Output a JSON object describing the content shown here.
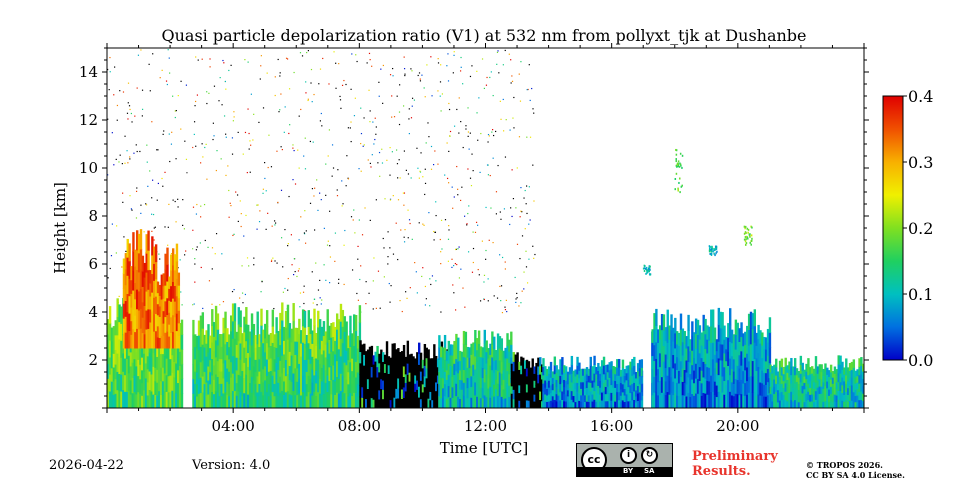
{
  "chart_data": {
    "type": "heatmap",
    "title": "Quasi particle depolarization ratio (V1) at 532 nm from pollyxt_tjk at Dushanbe",
    "xlabel": "Time [UTC]",
    "ylabel": "Height [km]",
    "x_range_hours": [
      0,
      24
    ],
    "ylim": [
      0,
      15
    ],
    "x_ticks": [
      {
        "hour": 4,
        "label": "04:00"
      },
      {
        "hour": 8,
        "label": "08:00"
      },
      {
        "hour": 12,
        "label": "12:00"
      },
      {
        "hour": 16,
        "label": "16:00"
      },
      {
        "hour": 20,
        "label": "20:00"
      }
    ],
    "y_ticks": [
      {
        "value": 2,
        "label": "2"
      },
      {
        "value": 4,
        "label": "4"
      },
      {
        "value": 6,
        "label": "6"
      },
      {
        "value": 8,
        "label": "8"
      },
      {
        "value": 10,
        "label": "10"
      },
      {
        "value": 12,
        "label": "12"
      },
      {
        "value": 14,
        "label": "14"
      }
    ],
    "colorbar": {
      "min": 0.0,
      "max": 0.4,
      "ticks": [
        {
          "value": 0.0,
          "label": "0.0"
        },
        {
          "value": 0.1,
          "label": "0.1"
        },
        {
          "value": 0.2,
          "label": "0.2"
        },
        {
          "value": 0.3,
          "label": "0.3"
        },
        {
          "value": 0.4,
          "label": "0.4"
        }
      ],
      "colormap": [
        "#0000c8",
        "#0070e0",
        "#00c0c0",
        "#20d060",
        "#80e020",
        "#f0f000",
        "#f8b000",
        "#f05000",
        "#e00000"
      ]
    },
    "layers": [
      {
        "t0": 0.0,
        "t1": 2.4,
        "top_km": 4.2,
        "value": 0.16
      },
      {
        "t0": 0.5,
        "t1": 2.3,
        "top_km": 6.8,
        "value": 0.33,
        "bottom_km": 2.5
      },
      {
        "t0": 2.7,
        "t1": 8.0,
        "top_km": 4.0,
        "value": 0.14
      },
      {
        "t0": 8.0,
        "t1": 10.8,
        "top_km": 2.6,
        "value": -1
      },
      {
        "t0": 10.5,
        "t1": 12.8,
        "top_km": 3.0,
        "value": 0.1
      },
      {
        "t0": 12.8,
        "t1": 13.8,
        "top_km": 2.2,
        "value": -1
      },
      {
        "t0": 13.8,
        "t1": 17.0,
        "top_km": 2.0,
        "value": 0.06
      },
      {
        "t0": 17.2,
        "t1": 21.0,
        "top_km": 3.8,
        "value": 0.06
      },
      {
        "t0": 21.0,
        "t1": 24.0,
        "top_km": 2.0,
        "value": 0.1
      }
    ],
    "gaps_hours": [
      [
        2.55,
        2.7
      ],
      [
        17.0,
        17.25
      ],
      [
        21.2,
        22.2
      ]
    ],
    "isolated_features": [
      {
        "t": 18.1,
        "h0": 9.0,
        "h1": 10.8,
        "value": 0.18
      },
      {
        "t": 20.3,
        "h0": 6.8,
        "h1": 7.6,
        "value": 0.2
      },
      {
        "t": 19.2,
        "h0": 6.4,
        "h1": 6.8,
        "value": 0.1
      },
      {
        "t": 17.1,
        "h0": 5.6,
        "h1": 6.0,
        "value": 0.1
      }
    ]
  },
  "footer": {
    "date": "2026-04-22",
    "version": "Version: 4.0",
    "preliminary_line1": "Preliminary",
    "preliminary_line2": "Results.",
    "copyright_line1": "© TROPOS 2026.",
    "copyright_line2": "CC BY SA 4.0 License.",
    "license_badge": {
      "main": "cc",
      "by": "BY",
      "sa": "SA"
    }
  },
  "colors": {
    "accent_red": "#e8342c"
  }
}
